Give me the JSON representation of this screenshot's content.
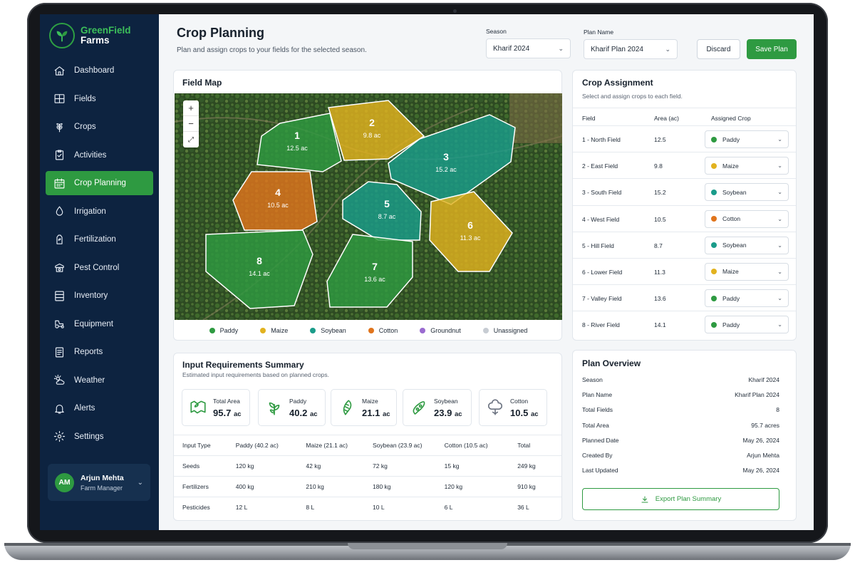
{
  "brand": {
    "name_line1": "GreenField",
    "name_line2": "Farms"
  },
  "sidebar": {
    "items": [
      {
        "label": "Dashboard",
        "icon": "home-icon"
      },
      {
        "label": "Fields",
        "icon": "fields-icon"
      },
      {
        "label": "Crops",
        "icon": "crops-icon"
      },
      {
        "label": "Activities",
        "icon": "activities-icon"
      },
      {
        "label": "Crop Planning",
        "icon": "calendar-icon",
        "active": true
      },
      {
        "label": "Irrigation",
        "icon": "water-drop-icon"
      },
      {
        "label": "Fertilization",
        "icon": "fertilizer-icon"
      },
      {
        "label": "Pest Control",
        "icon": "pest-control-icon"
      },
      {
        "label": "Inventory",
        "icon": "inventory-icon"
      },
      {
        "label": "Equipment",
        "icon": "tractor-icon"
      },
      {
        "label": "Reports",
        "icon": "reports-icon"
      },
      {
        "label": "Weather",
        "icon": "weather-icon"
      },
      {
        "label": "Alerts",
        "icon": "bell-icon"
      },
      {
        "label": "Settings",
        "icon": "gear-icon"
      }
    ],
    "user": {
      "initials": "AM",
      "name": "Arjun Mehta",
      "role": "Farm Manager"
    }
  },
  "header": {
    "title": "Crop Planning",
    "subtitle": "Plan and assign crops to your fields for the selected season.",
    "season_label": "Season",
    "season_value": "Kharif 2024",
    "plan_label": "Plan Name",
    "plan_value": "Kharif Plan 2024",
    "discard_label": "Discard",
    "save_label": "Save Plan"
  },
  "colors": {
    "accent": "#2e9a41",
    "sidebar": "#0d2340",
    "Paddy": "#2e9a41",
    "Maize": "#e2b21f",
    "Soybean": "#1a9c8a",
    "Cotton": "#e0741c",
    "Groundnut": "#9a6bd0",
    "Unassigned": "#c7ccd3"
  },
  "field_map": {
    "title": "Field Map",
    "zoom_in": "+",
    "zoom_out": "−",
    "fullscreen": "⤢",
    "fields": [
      {
        "number": "1",
        "area": "12.5 ac",
        "crop": "Paddy"
      },
      {
        "number": "2",
        "area": "9.8 ac",
        "crop": "Maize"
      },
      {
        "number": "3",
        "area": "15.2 ac",
        "crop": "Soybean"
      },
      {
        "number": "4",
        "area": "10.5 ac",
        "crop": "Cotton"
      },
      {
        "number": "5",
        "area": "8.7 ac",
        "crop": "Soybean"
      },
      {
        "number": "6",
        "area": "11.3 ac",
        "crop": "Maize"
      },
      {
        "number": "7",
        "area": "13.6 ac",
        "crop": "Paddy"
      },
      {
        "number": "8",
        "area": "14.1 ac",
        "crop": "Paddy"
      }
    ],
    "legend": [
      "Paddy",
      "Maize",
      "Soybean",
      "Cotton",
      "Groundnut",
      "Unassigned"
    ]
  },
  "crop_assignment": {
    "title": "Crop Assignment",
    "subtitle": "Select and assign crops to each field.",
    "col_field": "Field",
    "col_area": "Area (ac)",
    "col_crop": "Assigned Crop",
    "rows": [
      {
        "field": "1 - North Field",
        "area": "12.5",
        "crop": "Paddy"
      },
      {
        "field": "2 - East Field",
        "area": "9.8",
        "crop": "Maize"
      },
      {
        "field": "3 - South Field",
        "area": "15.2",
        "crop": "Soybean"
      },
      {
        "field": "4 - West Field",
        "area": "10.5",
        "crop": "Cotton"
      },
      {
        "field": "5 - Hill Field",
        "area": "8.7",
        "crop": "Soybean"
      },
      {
        "field": "6 - Lower Field",
        "area": "11.3",
        "crop": "Maize"
      },
      {
        "field": "7 - Valley Field",
        "area": "13.6",
        "crop": "Paddy"
      },
      {
        "field": "8 - River Field",
        "area": "14.1",
        "crop": "Paddy"
      }
    ]
  },
  "input_summary": {
    "title": "Input Requirements Summary",
    "subtitle": "Estimated input requirements based on planned crops.",
    "stats": [
      {
        "label": "Total Area",
        "value": "95.7",
        "unit": "ac",
        "icon": "area-icon"
      },
      {
        "label": "Paddy",
        "value": "40.2",
        "unit": "ac",
        "icon": "paddy-icon"
      },
      {
        "label": "Maize",
        "value": "21.1",
        "unit": "ac",
        "icon": "maize-icon"
      },
      {
        "label": "Soybean",
        "value": "23.9",
        "unit": "ac",
        "icon": "soybean-icon"
      },
      {
        "label": "Cotton",
        "value": "10.5",
        "unit": "ac",
        "icon": "cotton-icon"
      }
    ],
    "headers": [
      "Input Type",
      "Paddy (40.2 ac)",
      "Maize (21.1 ac)",
      "Soybean (23.9 ac)",
      "Cotton (10.5 ac)",
      "Total"
    ],
    "rows": [
      [
        "Seeds",
        "120 kg",
        "42 kg",
        "72 kg",
        "15 kg",
        "249 kg"
      ],
      [
        "Fertilizers",
        "400 kg",
        "210 kg",
        "180 kg",
        "120 kg",
        "910 kg"
      ],
      [
        "Pesticides",
        "12 L",
        "8 L",
        "10 L",
        "6 L",
        "36 L"
      ]
    ]
  },
  "plan_overview": {
    "title": "Plan Overview",
    "rows": [
      {
        "label": "Season",
        "value": "Kharif 2024"
      },
      {
        "label": "Plan Name",
        "value": "Kharif Plan 2024"
      },
      {
        "label": "Total Fields",
        "value": "8"
      },
      {
        "label": "Total Area",
        "value": "95.7 acres"
      },
      {
        "label": "Planned Date",
        "value": "May 26, 2024"
      },
      {
        "label": "Created By",
        "value": "Arjun Mehta"
      },
      {
        "label": "Last Updated",
        "value": "May 26, 2024"
      }
    ],
    "export_label": "Export Plan Summary"
  }
}
